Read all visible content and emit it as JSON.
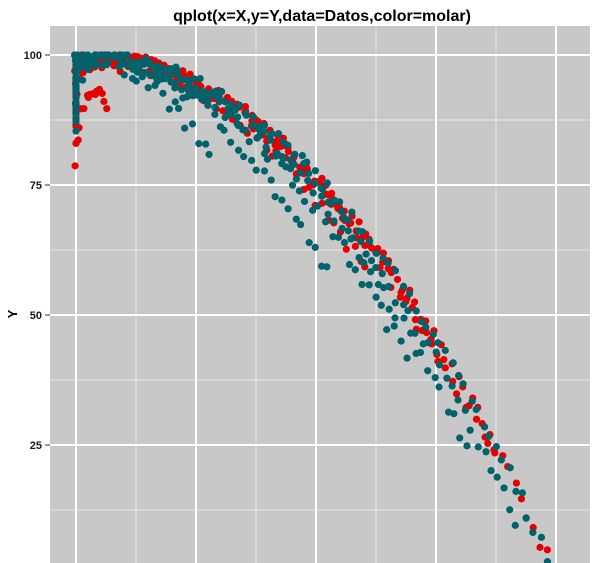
{
  "chart_data": {
    "type": "scatter",
    "title": "qplot(x=X,y=Y,data=Datos,color=molar)",
    "xlabel": "",
    "ylabel": "Y",
    "xlim": [
      0,
      1.0
    ],
    "ylim": [
      3,
      105
    ],
    "y_ticks": [
      {
        "value": 100,
        "label": "100"
      },
      {
        "value": 75,
        "label": "75"
      },
      {
        "value": 50,
        "label": "50"
      },
      {
        "value": 25,
        "label": "25"
      }
    ],
    "y_minor_ticks": [
      87.5,
      62.5,
      37.5,
      12.5
    ],
    "x_gridlines": [
      0,
      0.12,
      0.24,
      0.36,
      0.48,
      0.6,
      0.72,
      0.84,
      0.96
    ],
    "x_label_visible": false,
    "grid": true,
    "panel_background": "#c8c8c8",
    "grid_color": "#ffffff",
    "legend": "none",
    "series": [
      {
        "color": "#e60000",
        "groups": [
          {
            "anchor": [
              0.0,
              83
            ],
            "x_max": 0.09,
            "y_start": 93,
            "y_at_xmax": 98
          },
          {
            "anchor": [
              0.0,
              76
            ],
            "x_max": 0.06,
            "y_start": 80,
            "y_at_xmax": 91
          },
          {
            "anchor": [
              0.0,
              85
            ],
            "x_max": 0.58,
            "y_start": 95,
            "y_at_xmax": 58
          },
          {
            "anchor": [
              0.0,
              88
            ],
            "x_max": 0.72,
            "y_start": 97,
            "y_at_xmax": 42
          },
          {
            "anchor": [
              0.0,
              90
            ],
            "x_max": 0.84,
            "y_start": 99,
            "y_at_xmax": 22
          },
          {
            "anchor": [
              0.0,
              92
            ],
            "x_max": 0.94,
            "y_start": 100,
            "y_at_xmax": 4
          }
        ]
      },
      {
        "color": "#00626a",
        "groups": [
          {
            "anchor": [
              0.0,
              84
            ],
            "x_max": 0.27,
            "y_start": 92,
            "y_at_xmax": 80
          },
          {
            "anchor": [
              0.0,
              86
            ],
            "x_max": 0.5,
            "y_start": 95,
            "y_at_xmax": 58
          },
          {
            "anchor": [
              0.0,
              88
            ],
            "x_max": 0.66,
            "y_start": 97,
            "y_at_xmax": 42
          },
          {
            "anchor": [
              0.0,
              90
            ],
            "x_max": 0.78,
            "y_start": 99,
            "y_at_xmax": 25
          },
          {
            "anchor": [
              0.0,
              92
            ],
            "x_max": 0.88,
            "y_start": 100,
            "y_at_xmax": 10
          },
          {
            "anchor": [
              0.0,
              95
            ],
            "x_max": 0.94,
            "y_start": 100,
            "y_at_xmax": 4
          }
        ]
      }
    ]
  }
}
